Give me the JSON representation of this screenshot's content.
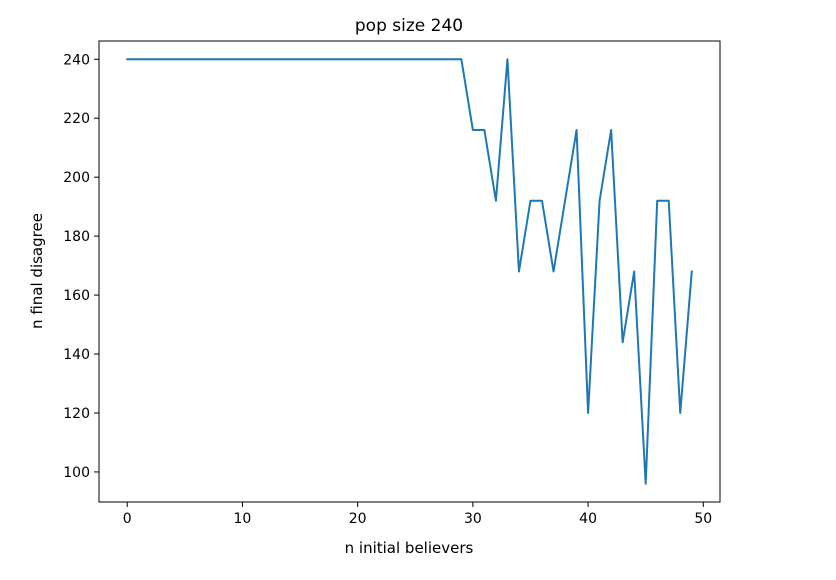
{
  "chart_data": {
    "type": "line",
    "title": "pop size 240",
    "xlabel": "n initial believers",
    "ylabel": "n final disagree",
    "xlim": [
      -2.45,
      51.45
    ],
    "ylim": [
      89.8,
      246.2
    ],
    "xticks": [
      0,
      10,
      20,
      30,
      40,
      50
    ],
    "yticks": [
      100,
      120,
      140,
      160,
      180,
      200,
      220,
      240
    ],
    "grid": false,
    "series": [
      {
        "color": "#1f77b4",
        "x": [
          0,
          1,
          2,
          3,
          4,
          5,
          6,
          7,
          8,
          9,
          10,
          11,
          12,
          13,
          14,
          15,
          16,
          17,
          18,
          19,
          20,
          21,
          22,
          23,
          24,
          25,
          26,
          27,
          28,
          29,
          30,
          31,
          32,
          33,
          34,
          35,
          36,
          37,
          38,
          39,
          40,
          41,
          42,
          43,
          44,
          45,
          46,
          47,
          48,
          49
        ],
        "y": [
          240,
          240,
          240,
          240,
          240,
          240,
          240,
          240,
          240,
          240,
          240,
          240,
          240,
          240,
          240,
          240,
          240,
          240,
          240,
          240,
          240,
          240,
          240,
          240,
          240,
          240,
          240,
          240,
          240,
          240,
          216,
          216,
          192,
          240,
          168,
          192,
          192,
          168,
          192,
          216,
          120,
          192,
          216,
          144,
          168,
          96,
          192,
          192,
          120,
          168
        ]
      }
    ]
  }
}
